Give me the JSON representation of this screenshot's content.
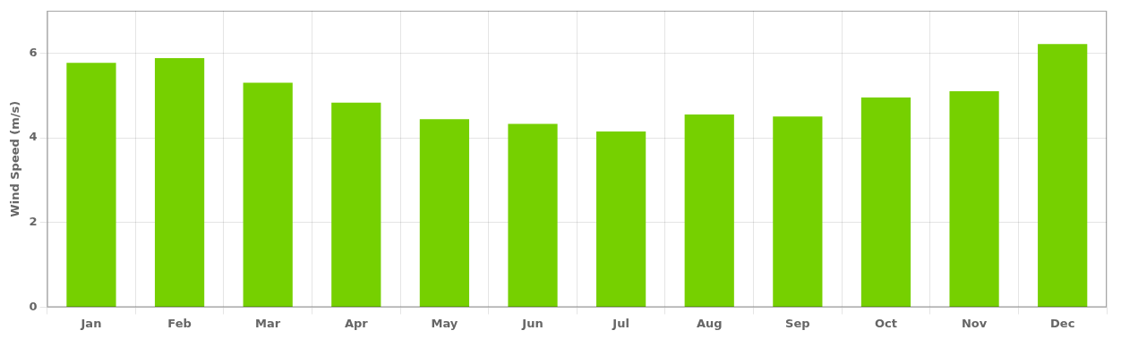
{
  "chart_data": {
    "type": "bar",
    "categories": [
      "Jan",
      "Feb",
      "Mar",
      "Apr",
      "May",
      "Jun",
      "Jul",
      "Aug",
      "Sep",
      "Oct",
      "Nov",
      "Dec"
    ],
    "values": [
      5.77,
      5.88,
      5.3,
      4.83,
      4.44,
      4.33,
      4.15,
      4.55,
      4.5,
      4.95,
      5.1,
      6.211
    ],
    "color": "#76d000",
    "ylabel": "Wind Speed (m/s)",
    "ylim": [
      0,
      7
    ],
    "yticks": [
      0,
      2,
      4,
      6
    ],
    "grid": true
  }
}
